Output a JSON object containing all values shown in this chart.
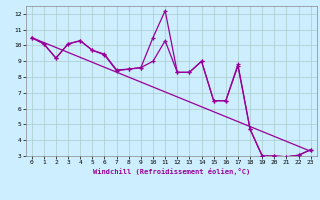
{
  "xlabel": "Windchill (Refroidissement éolien,°C)",
  "bg_color": "#cceeff",
  "grid_color": "#aacccc",
  "line_color": "#990099",
  "xlim": [
    -0.5,
    23.5
  ],
  "ylim": [
    3,
    12.5
  ],
  "xticks": [
    0,
    1,
    2,
    3,
    4,
    5,
    6,
    7,
    8,
    9,
    10,
    11,
    12,
    13,
    14,
    15,
    16,
    17,
    18,
    19,
    20,
    21,
    22,
    23
  ],
  "yticks": [
    3,
    4,
    5,
    6,
    7,
    8,
    9,
    10,
    11,
    12
  ],
  "line1_x": [
    0,
    1,
    2,
    3,
    4,
    5,
    6,
    7,
    8,
    9,
    10,
    11,
    12,
    13,
    14,
    15,
    16,
    17,
    18,
    19,
    20,
    21,
    22,
    23
  ],
  "line1_y": [
    10.5,
    10.1,
    9.2,
    10.1,
    10.3,
    9.7,
    9.4,
    8.4,
    8.5,
    8.6,
    10.5,
    12.2,
    8.3,
    8.3,
    9.0,
    6.5,
    6.5,
    8.8,
    4.7,
    3.0,
    3.0,
    2.95,
    3.05,
    3.4
  ],
  "line2_x": [
    0,
    1,
    2,
    3,
    4,
    5,
    6,
    7,
    8,
    9,
    10,
    11,
    12,
    13,
    14,
    15,
    16,
    17,
    18,
    19,
    20,
    21,
    22,
    23
  ],
  "line2_y": [
    10.5,
    10.1,
    9.2,
    10.1,
    10.3,
    9.7,
    9.45,
    8.45,
    8.5,
    8.6,
    9.0,
    10.3,
    8.3,
    8.3,
    9.0,
    6.5,
    6.5,
    8.7,
    4.7,
    3.0,
    3.0,
    2.95,
    3.05,
    3.4
  ],
  "trend_x": [
    0,
    23
  ],
  "trend_y": [
    10.5,
    3.3
  ]
}
